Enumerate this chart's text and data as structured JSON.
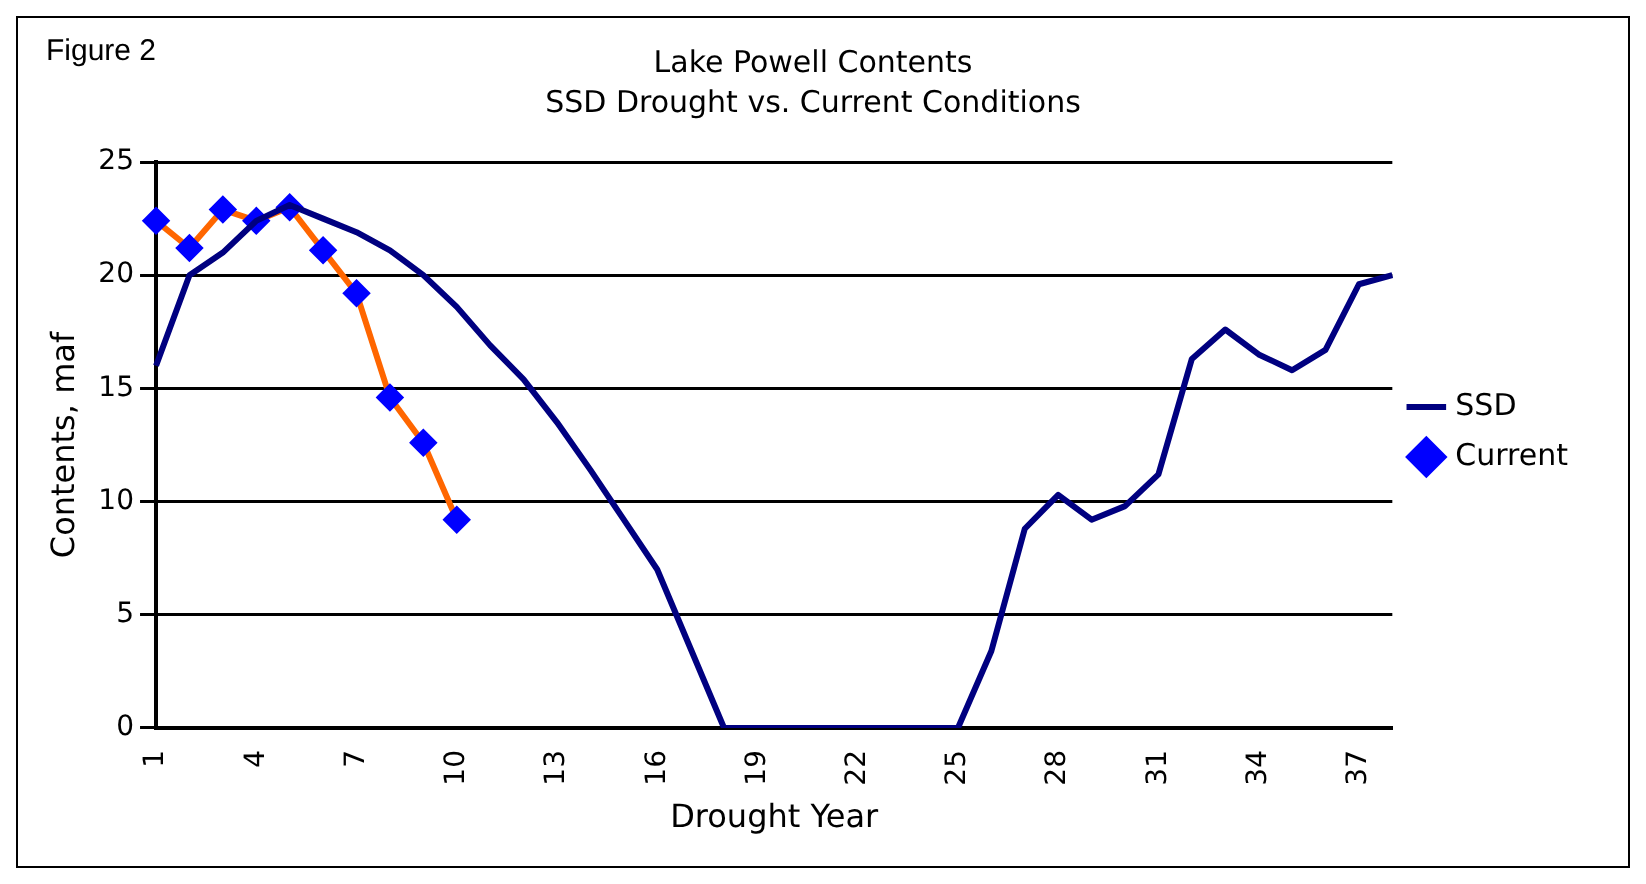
{
  "chart_data": {
    "type": "line",
    "title": "Lake Powell Contents",
    "subtitle": "SSD Drought vs. Current Conditions",
    "xlabel": "Drought Year",
    "ylabel": "Contents, maf",
    "annotations": [
      "Figure 2"
    ],
    "categories": [
      "1",
      null,
      null,
      "4",
      null,
      null,
      "7",
      null,
      null,
      "10",
      null,
      null,
      "13",
      null,
      null,
      "16",
      null,
      null,
      "19",
      null,
      null,
      "22",
      null,
      null,
      "25",
      null,
      null,
      "28",
      null,
      null,
      "31",
      null,
      null,
      "34",
      null,
      null,
      "37",
      null
    ],
    "series": [
      {
        "name": "SSD",
        "color": "#000080",
        "marker": "none",
        "values": [
          16,
          20,
          21,
          22.4,
          23.1,
          22.5,
          21.9,
          21.1,
          20,
          18.6,
          16.9,
          15.4,
          13.5,
          11.4,
          9.2,
          7,
          3.5,
          0,
          0,
          0,
          0,
          0,
          0,
          0,
          0,
          3.4,
          8.8,
          10.3,
          9.2,
          9.8,
          11.2,
          16.3,
          17.6,
          16.5,
          15.8,
          16.7,
          19.6,
          20
        ]
      },
      {
        "name": "Current",
        "color": "#ff6600",
        "marker": "diamond",
        "values": [
          22.4,
          21.2,
          22.9,
          22.4,
          23,
          21.1,
          19.2,
          14.6,
          12.6,
          9.2,
          null,
          null,
          null,
          null,
          null,
          null,
          null,
          null,
          null,
          null,
          null,
          null,
          null,
          null,
          null,
          null,
          null,
          null,
          null,
          null,
          null,
          null,
          null,
          null,
          null,
          null,
          null,
          null
        ]
      }
    ],
    "ylim": [
      0,
      25
    ],
    "yticks": [
      0,
      5,
      10,
      15,
      20,
      25
    ],
    "grid": "y",
    "legend": "right"
  }
}
